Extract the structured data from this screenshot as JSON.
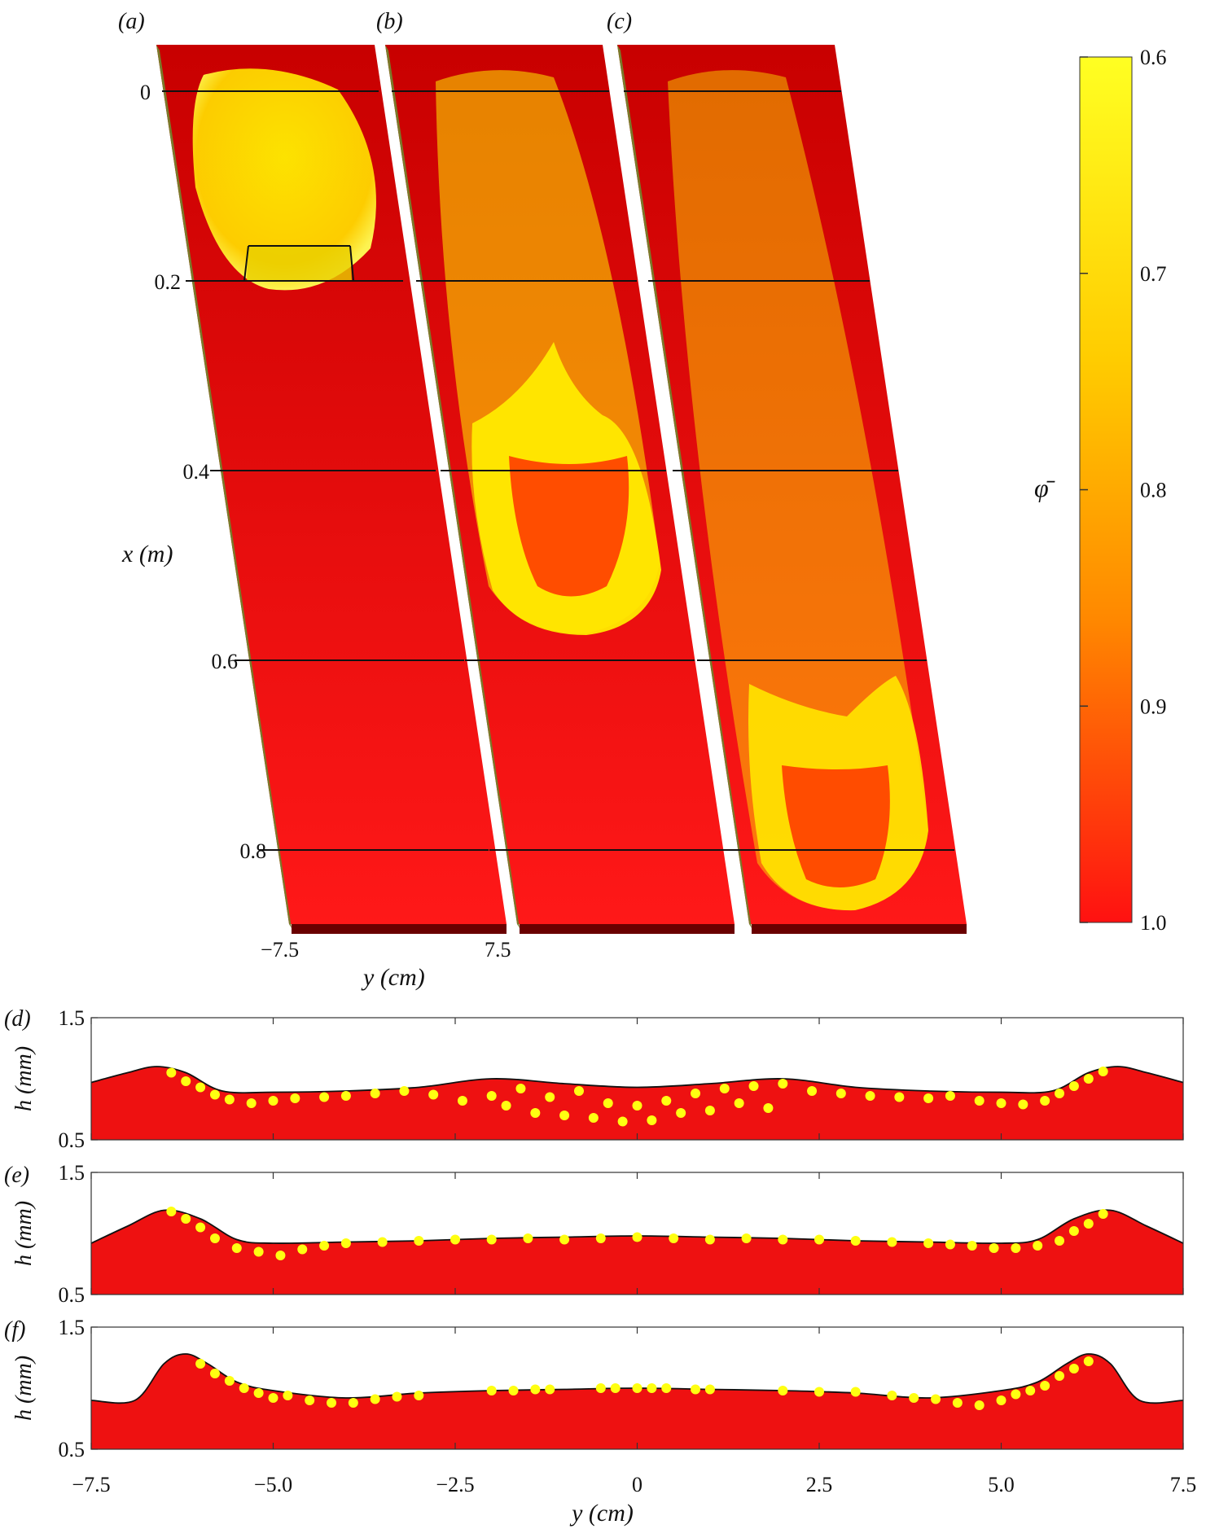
{
  "colors": {
    "red": "#ee1111",
    "yellow": "#ffff22",
    "dark_red": "#6a0000",
    "olive_edge": "#7a7a2a",
    "dots": "#ffff11"
  },
  "panel_labels": [
    "(a)",
    "(b)",
    "(c)",
    "(d)",
    "(e)",
    "(f)"
  ],
  "surface_3d": {
    "x_axis": {
      "label": "x (m)",
      "ticks": [
        "0",
        "0.2",
        "0.4",
        "0.6",
        "0.8"
      ]
    },
    "y_axis": {
      "label": "y (cm)",
      "ticks": [
        "−7.5",
        "7.5"
      ]
    }
  },
  "colorbar": {
    "label": "φ̄",
    "ticks": [
      "0.6",
      "0.7",
      "0.8",
      "0.9",
      "1.0"
    ],
    "range": [
      0.6,
      1.0
    ],
    "color_low": "#ffff22",
    "color_high": "#ff1111"
  },
  "profiles_axes": {
    "xlabel": "y (cm)",
    "ylabel": "h (mm)",
    "xticks": [
      "−7.5",
      "−5.0",
      "−2.5",
      "0",
      "2.5",
      "5.0",
      "7.5"
    ],
    "yticks": [
      "0.5",
      "1.5"
    ]
  },
  "chart_data": [
    {
      "panel": "(d)",
      "type": "area",
      "xlabel": "y (cm)",
      "ylabel": "h (mm)",
      "xlim": [
        -7.5,
        7.5
      ],
      "ylim": [
        0.5,
        1.5
      ],
      "profile": {
        "x": [
          -7.5,
          -7.0,
          -6.6,
          -6.2,
          -5.7,
          -5.0,
          -4.0,
          -3.0,
          -2.0,
          -1.0,
          0.0,
          1.0,
          2.0,
          3.0,
          4.0,
          5.0,
          5.7,
          6.2,
          6.6,
          7.0,
          7.5
        ],
        "h": [
          0.97,
          1.05,
          1.1,
          1.05,
          0.9,
          0.89,
          0.9,
          0.93,
          1.0,
          0.96,
          0.93,
          0.96,
          1.0,
          0.93,
          0.9,
          0.89,
          0.9,
          1.05,
          1.1,
          1.05,
          0.97
        ]
      },
      "samples": {
        "x": [
          -6.4,
          -6.2,
          -6.0,
          -5.8,
          -5.6,
          -5.3,
          -5.0,
          -4.7,
          -4.3,
          -4.0,
          -3.6,
          -3.2,
          -2.8,
          -2.4,
          -2.0,
          -1.8,
          -1.6,
          -1.4,
          -1.2,
          -1.0,
          -0.8,
          -0.6,
          -0.4,
          -0.2,
          0.0,
          0.2,
          0.4,
          0.6,
          0.8,
          1.0,
          1.2,
          1.4,
          1.6,
          1.8,
          2.0,
          2.4,
          2.8,
          3.2,
          3.6,
          4.0,
          4.3,
          4.7,
          5.0,
          5.3,
          5.6,
          5.8,
          6.0,
          6.2,
          6.4
        ],
        "h": [
          1.05,
          0.98,
          0.93,
          0.87,
          0.83,
          0.8,
          0.82,
          0.84,
          0.85,
          0.86,
          0.88,
          0.9,
          0.87,
          0.82,
          0.86,
          0.78,
          0.92,
          0.72,
          0.85,
          0.7,
          0.9,
          0.68,
          0.8,
          0.65,
          0.78,
          0.66,
          0.82,
          0.72,
          0.88,
          0.74,
          0.92,
          0.8,
          0.94,
          0.76,
          0.96,
          0.9,
          0.88,
          0.86,
          0.85,
          0.84,
          0.86,
          0.82,
          0.8,
          0.79,
          0.82,
          0.88,
          0.94,
          1.0,
          1.06
        ]
      }
    },
    {
      "panel": "(e)",
      "type": "area",
      "xlabel": "y (cm)",
      "ylabel": "h (mm)",
      "xlim": [
        -7.5,
        7.5
      ],
      "ylim": [
        0.5,
        1.5
      ],
      "profile": {
        "x": [
          -7.5,
          -7.0,
          -6.5,
          -6.0,
          -5.5,
          -5.0,
          -4.0,
          -3.0,
          -2.0,
          -1.0,
          0.0,
          1.0,
          2.0,
          3.0,
          4.0,
          5.0,
          5.5,
          6.0,
          6.5,
          7.0,
          7.5
        ],
        "h": [
          0.92,
          1.06,
          1.19,
          1.12,
          0.95,
          0.92,
          0.93,
          0.94,
          0.96,
          0.97,
          0.98,
          0.97,
          0.96,
          0.94,
          0.93,
          0.92,
          0.95,
          1.12,
          1.19,
          1.06,
          0.92
        ]
      },
      "samples": {
        "x": [
          -6.4,
          -6.2,
          -6.0,
          -5.8,
          -5.5,
          -5.2,
          -4.9,
          -4.6,
          -4.3,
          -4.0,
          -3.5,
          -3.0,
          -2.5,
          -2.0,
          -1.5,
          -1.0,
          -0.5,
          0.0,
          0.5,
          1.0,
          1.5,
          2.0,
          2.5,
          3.0,
          3.5,
          4.0,
          4.3,
          4.6,
          4.9,
          5.2,
          5.5,
          5.8,
          6.0,
          6.2,
          6.4
        ],
        "h": [
          1.18,
          1.12,
          1.05,
          0.96,
          0.88,
          0.85,
          0.82,
          0.87,
          0.9,
          0.92,
          0.93,
          0.94,
          0.95,
          0.95,
          0.96,
          0.95,
          0.96,
          0.97,
          0.96,
          0.95,
          0.96,
          0.95,
          0.95,
          0.94,
          0.93,
          0.92,
          0.91,
          0.9,
          0.88,
          0.88,
          0.9,
          0.94,
          1.02,
          1.08,
          1.16
        ]
      }
    },
    {
      "panel": "(f)",
      "type": "area",
      "xlabel": "y (cm)",
      "ylabel": "h (mm)",
      "xlim": [
        -7.5,
        7.5
      ],
      "ylim": [
        0.5,
        1.5
      ],
      "profile": {
        "x": [
          -7.5,
          -6.9,
          -6.5,
          -6.2,
          -5.9,
          -5.5,
          -5.0,
          -4.0,
          -3.0,
          -2.0,
          -1.0,
          0.0,
          1.0,
          2.0,
          3.0,
          4.0,
          5.0,
          5.5,
          5.9,
          6.2,
          6.5,
          6.9,
          7.5
        ],
        "h": [
          0.9,
          0.9,
          1.2,
          1.28,
          1.2,
          1.05,
          0.98,
          0.92,
          0.96,
          0.98,
          0.99,
          1.0,
          0.99,
          0.98,
          0.96,
          0.92,
          0.98,
          1.05,
          1.2,
          1.28,
          1.2,
          0.9,
          0.9
        ]
      },
      "samples": {
        "x": [
          -6.0,
          -5.8,
          -5.6,
          -5.4,
          -5.2,
          -5.0,
          -4.8,
          -4.5,
          -4.2,
          -3.9,
          -3.6,
          -3.3,
          -3.0,
          -2.0,
          -1.7,
          -1.4,
          -1.2,
          -0.5,
          -0.3,
          0.0,
          0.2,
          0.4,
          0.8,
          1.0,
          2.0,
          2.5,
          3.0,
          3.5,
          3.8,
          4.1,
          4.4,
          4.7,
          5.0,
          5.2,
          5.4,
          5.6,
          5.8,
          6.0,
          6.2
        ],
        "h": [
          1.2,
          1.12,
          1.06,
          1.0,
          0.96,
          0.92,
          0.94,
          0.9,
          0.88,
          0.88,
          0.91,
          0.93,
          0.94,
          0.98,
          0.98,
          0.99,
          0.99,
          1.0,
          1.0,
          1.0,
          1.0,
          1.0,
          0.99,
          0.99,
          0.98,
          0.97,
          0.97,
          0.94,
          0.92,
          0.91,
          0.88,
          0.86,
          0.9,
          0.95,
          0.98,
          1.02,
          1.1,
          1.16,
          1.22
        ]
      }
    }
  ]
}
